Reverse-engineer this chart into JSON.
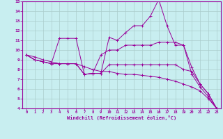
{
  "bg_color": "#c8eef0",
  "grid_color": "#aacccc",
  "line_color": "#990099",
  "xlabel": "Windchill (Refroidissement éolien,°C)",
  "xlim_min": -0.5,
  "xlim_max": 23.5,
  "ylim_min": 4,
  "ylim_max": 15,
  "xticks": [
    0,
    1,
    2,
    3,
    4,
    5,
    6,
    7,
    8,
    9,
    10,
    11,
    12,
    13,
    14,
    15,
    16,
    17,
    18,
    19,
    20,
    21,
    22,
    23
  ],
  "yticks": [
    4,
    5,
    6,
    7,
    8,
    9,
    10,
    11,
    12,
    13,
    14,
    15
  ],
  "series": [
    [
      9.5,
      9.0,
      8.8,
      8.6,
      11.2,
      11.2,
      11.2,
      7.5,
      7.6,
      7.6,
      11.3,
      11.0,
      11.8,
      12.5,
      12.5,
      13.5,
      15.2,
      12.5,
      10.5,
      10.5,
      7.5,
      6.2,
      5.2,
      4.0
    ],
    [
      9.5,
      9.0,
      8.8,
      8.6,
      8.6,
      8.6,
      8.6,
      7.5,
      7.6,
      9.5,
      10.0,
      10.0,
      10.5,
      10.5,
      10.5,
      10.5,
      10.8,
      10.8,
      10.8,
      10.5,
      8.2,
      6.5,
      5.5,
      4.0
    ],
    [
      9.5,
      9.0,
      8.8,
      8.6,
      8.6,
      8.6,
      8.6,
      7.5,
      7.6,
      7.6,
      8.5,
      8.5,
      8.5,
      8.5,
      8.5,
      8.5,
      8.5,
      8.5,
      8.5,
      8.0,
      7.8,
      6.5,
      5.5,
      4.0
    ],
    [
      9.5,
      9.3,
      9.0,
      8.8,
      8.6,
      8.6,
      8.6,
      8.3,
      8.0,
      7.8,
      7.8,
      7.6,
      7.5,
      7.5,
      7.4,
      7.3,
      7.2,
      7.0,
      6.8,
      6.5,
      6.2,
      5.8,
      5.0,
      4.0
    ]
  ]
}
